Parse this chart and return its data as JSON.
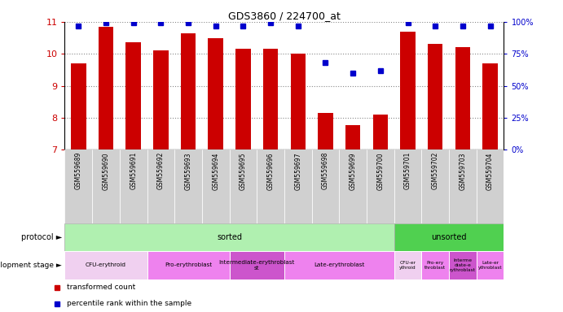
{
  "title": "GDS3860 / 224700_at",
  "samples": [
    "GSM559689",
    "GSM559690",
    "GSM559691",
    "GSM559692",
    "GSM559693",
    "GSM559694",
    "GSM559695",
    "GSM559696",
    "GSM559697",
    "GSM559698",
    "GSM559699",
    "GSM559700",
    "GSM559701",
    "GSM559702",
    "GSM559703",
    "GSM559704"
  ],
  "bar_values": [
    9.7,
    10.85,
    10.35,
    10.1,
    10.65,
    10.5,
    10.15,
    10.15,
    10.0,
    8.15,
    7.78,
    8.1,
    10.7,
    10.3,
    10.2,
    9.7
  ],
  "percentile_values": [
    97,
    99,
    99,
    99,
    99,
    97,
    97,
    99,
    97,
    68,
    60,
    62,
    99,
    97,
    97,
    97
  ],
  "bar_color": "#cc0000",
  "percentile_color": "#0000cc",
  "ylim": [
    7,
    11
  ],
  "y_ticks": [
    7,
    8,
    9,
    10,
    11
  ],
  "right_ylim": [
    0,
    100
  ],
  "right_yticks": [
    0,
    25,
    50,
    75,
    100
  ],
  "right_yticklabels": [
    "0%",
    "25%",
    "50%",
    "75%",
    "100%"
  ],
  "protocol_color_sorted": "#b0f0b0",
  "protocol_color_unsorted": "#50d050",
  "dev_stage_colors_sorted": [
    "#f0d0f0",
    "#ee82ee",
    "#cc55cc",
    "#ee82ee"
  ],
  "dev_stage_colors_unsorted": [
    "#f0d0f0",
    "#ee82ee",
    "#cc55cc",
    "#ee82ee"
  ],
  "dev_stages_sorted": [
    {
      "label": "CFU-erythroid",
      "start": 0,
      "end": 3
    },
    {
      "label": "Pro-erythroblast",
      "start": 3,
      "end": 6
    },
    {
      "label": "Intermediate-erythroblast\nst",
      "start": 6,
      "end": 8
    },
    {
      "label": "Late-erythroblast",
      "start": 8,
      "end": 12
    }
  ],
  "dev_stages_unsorted": [
    {
      "label": "CFU-er\nythroid",
      "start": 12,
      "end": 13
    },
    {
      "label": "Pro-ery\nthroblast",
      "start": 13,
      "end": 14
    },
    {
      "label": "Interme\ndiate-e\nrythroblast",
      "start": 14,
      "end": 15
    },
    {
      "label": "Late-er\nythroblast",
      "start": 15,
      "end": 16
    }
  ],
  "background_color": "#ffffff",
  "grid_color": "#888888",
  "n_samples": 16,
  "sorted_count": 12,
  "unsorted_count": 4
}
